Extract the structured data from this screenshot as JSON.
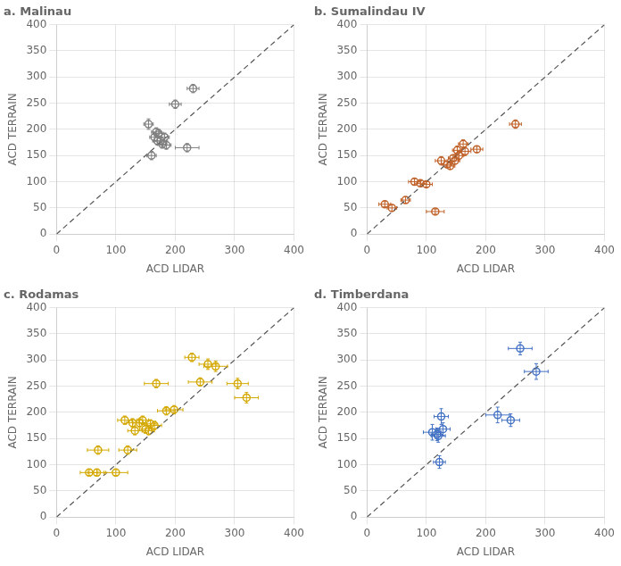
{
  "chart_data": [
    {
      "type": "scatter",
      "title": "a. Malinau",
      "xlabel": "ACD LIDAR",
      "ylabel": "ACD TERRAIN",
      "xlim": [
        0,
        400
      ],
      "ylim": [
        0,
        400
      ],
      "xticks": [
        0,
        100,
        200,
        300,
        400
      ],
      "yticks": [
        0,
        50,
        100,
        150,
        200,
        250,
        300,
        350,
        400
      ],
      "grid": true,
      "series": [
        {
          "type": "line",
          "line_style": "dashed",
          "color": "#555555",
          "x": [
            0,
            400
          ],
          "values": [
            0,
            400
          ]
        },
        {
          "type": "scatter",
          "marker": "circle",
          "color": "#808080",
          "x": [
            155,
            160,
            165,
            168,
            170,
            172,
            175,
            178,
            182,
            185,
            200,
            220,
            230
          ],
          "values": [
            210,
            150,
            185,
            195,
            178,
            192,
            178,
            172,
            185,
            170,
            248,
            165,
            278
          ],
          "xerr": [
            8,
            8,
            8,
            8,
            8,
            8,
            10,
            8,
            8,
            8,
            10,
            20,
            10
          ],
          "yerr": [
            10,
            8,
            8,
            8,
            8,
            8,
            8,
            8,
            8,
            8,
            8,
            8,
            8
          ]
        }
      ]
    },
    {
      "type": "scatter",
      "title": "b. Sumalindau IV",
      "xlabel": "ACD LIDAR",
      "ylabel": "ACD TERRAIN",
      "xlim": [
        0,
        400
      ],
      "ylim": [
        0,
        400
      ],
      "xticks": [
        0,
        100,
        200,
        300,
        400
      ],
      "yticks": [
        0,
        50,
        100,
        150,
        200,
        250,
        300,
        350,
        400
      ],
      "grid": true,
      "series": [
        {
          "type": "line",
          "line_style": "dashed",
          "color": "#555555",
          "x": [
            0,
            400
          ],
          "values": [
            0,
            400
          ]
        },
        {
          "type": "scatter",
          "marker": "circle",
          "color": "#C0622A",
          "x": [
            30,
            42,
            65,
            80,
            90,
            100,
            115,
            125,
            135,
            140,
            145,
            148,
            152,
            155,
            162,
            165,
            185,
            250
          ],
          "values": [
            57,
            50,
            65,
            100,
            97,
            95,
            43,
            140,
            133,
            130,
            145,
            140,
            160,
            150,
            172,
            158,
            162,
            210
          ],
          "xerr": [
            10,
            8,
            8,
            10,
            10,
            10,
            15,
            10,
            8,
            8,
            8,
            8,
            8,
            8,
            8,
            10,
            10,
            10
          ],
          "yerr": [
            5,
            6,
            6,
            6,
            5,
            5,
            5,
            8,
            6,
            6,
            6,
            6,
            8,
            8,
            8,
            8,
            6,
            8
          ]
        }
      ]
    },
    {
      "type": "scatter",
      "title": "c. Rodamas",
      "xlabel": "ACD LIDAR",
      "ylabel": "ACD TERRAIN",
      "xlim": [
        0,
        400
      ],
      "ylim": [
        0,
        400
      ],
      "xticks": [
        0,
        100,
        200,
        300,
        400
      ],
      "yticks": [
        0,
        50,
        100,
        150,
        200,
        250,
        300,
        350,
        400
      ],
      "grid": true,
      "series": [
        {
          "type": "line",
          "line_style": "dashed",
          "color": "#555555",
          "x": [
            0,
            400
          ],
          "values": [
            0,
            400
          ]
        },
        {
          "type": "scatter",
          "marker": "circle",
          "color": "#D4A800",
          "x": [
            55,
            68,
            70,
            100,
            115,
            120,
            128,
            132,
            140,
            145,
            150,
            155,
            158,
            165,
            168,
            185,
            198,
            228,
            242,
            255,
            268,
            305,
            320
          ],
          "values": [
            85,
            85,
            128,
            85,
            185,
            128,
            180,
            165,
            180,
            185,
            168,
            165,
            178,
            175,
            255,
            203,
            205,
            305,
            258,
            292,
            288,
            255,
            228
          ],
          "xerr": [
            15,
            15,
            18,
            20,
            12,
            15,
            10,
            12,
            10,
            10,
            10,
            10,
            10,
            12,
            20,
            15,
            15,
            12,
            20,
            15,
            20,
            18,
            20
          ],
          "yerr": [
            6,
            6,
            8,
            6,
            8,
            8,
            8,
            8,
            8,
            8,
            8,
            8,
            8,
            8,
            8,
            8,
            8,
            8,
            8,
            10,
            10,
            10,
            10
          ]
        }
      ]
    },
    {
      "type": "scatter",
      "title": "d. Timberdana",
      "xlabel": "ACD LIDAR",
      "ylabel": "ACD TERRAIN",
      "xlim": [
        0,
        400
      ],
      "ylim": [
        0,
        400
      ],
      "xticks": [
        0,
        100,
        200,
        300,
        400
      ],
      "yticks": [
        0,
        50,
        100,
        150,
        200,
        250,
        300,
        350,
        400
      ],
      "grid": true,
      "series": [
        {
          "type": "line",
          "line_style": "dashed",
          "color": "#555555",
          "x": [
            0,
            400
          ],
          "values": [
            0,
            400
          ]
        },
        {
          "type": "scatter",
          "marker": "circle",
          "color": "#4472C4",
          "x": [
            110,
            118,
            120,
            122,
            125,
            128,
            220,
            242,
            258,
            285
          ],
          "values": [
            162,
            158,
            155,
            105,
            192,
            168,
            195,
            185,
            322,
            278
          ],
          "xerr": [
            15,
            10,
            12,
            10,
            12,
            12,
            20,
            15,
            20,
            20
          ],
          "yerr": [
            15,
            12,
            12,
            12,
            15,
            12,
            15,
            12,
            12,
            15
          ]
        }
      ]
    }
  ]
}
